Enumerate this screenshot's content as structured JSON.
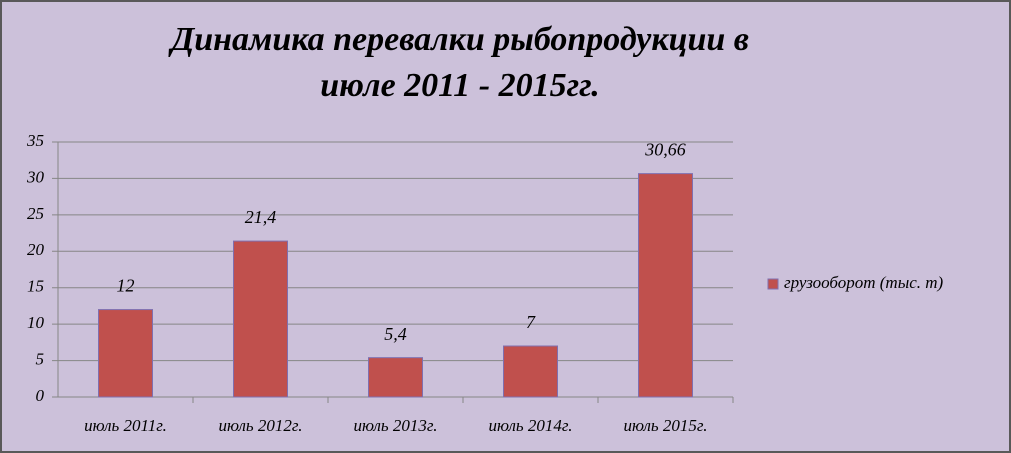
{
  "chart_data": {
    "type": "bar",
    "title": [
      "Динамика перевалки рыбопродукции в",
      "июле  2011 - 2015гг."
    ],
    "categories": [
      "июль 2011г.",
      "июль 2012г.",
      "июль 2013г.",
      "июль 2014г.",
      "июль 2015г."
    ],
    "series": [
      {
        "name": "грузооборот (тыс. т)",
        "color": "#c0504d",
        "values": [
          12,
          21.4,
          5.4,
          7,
          30.66
        ],
        "value_labels": [
          "12",
          "21,4",
          "5,4",
          "7",
          "30,66"
        ]
      }
    ],
    "ylim": [
      0,
      35
    ],
    "yticks": [
      0,
      5,
      10,
      15,
      20,
      25,
      30,
      35
    ],
    "grid": true,
    "legend": "right"
  }
}
